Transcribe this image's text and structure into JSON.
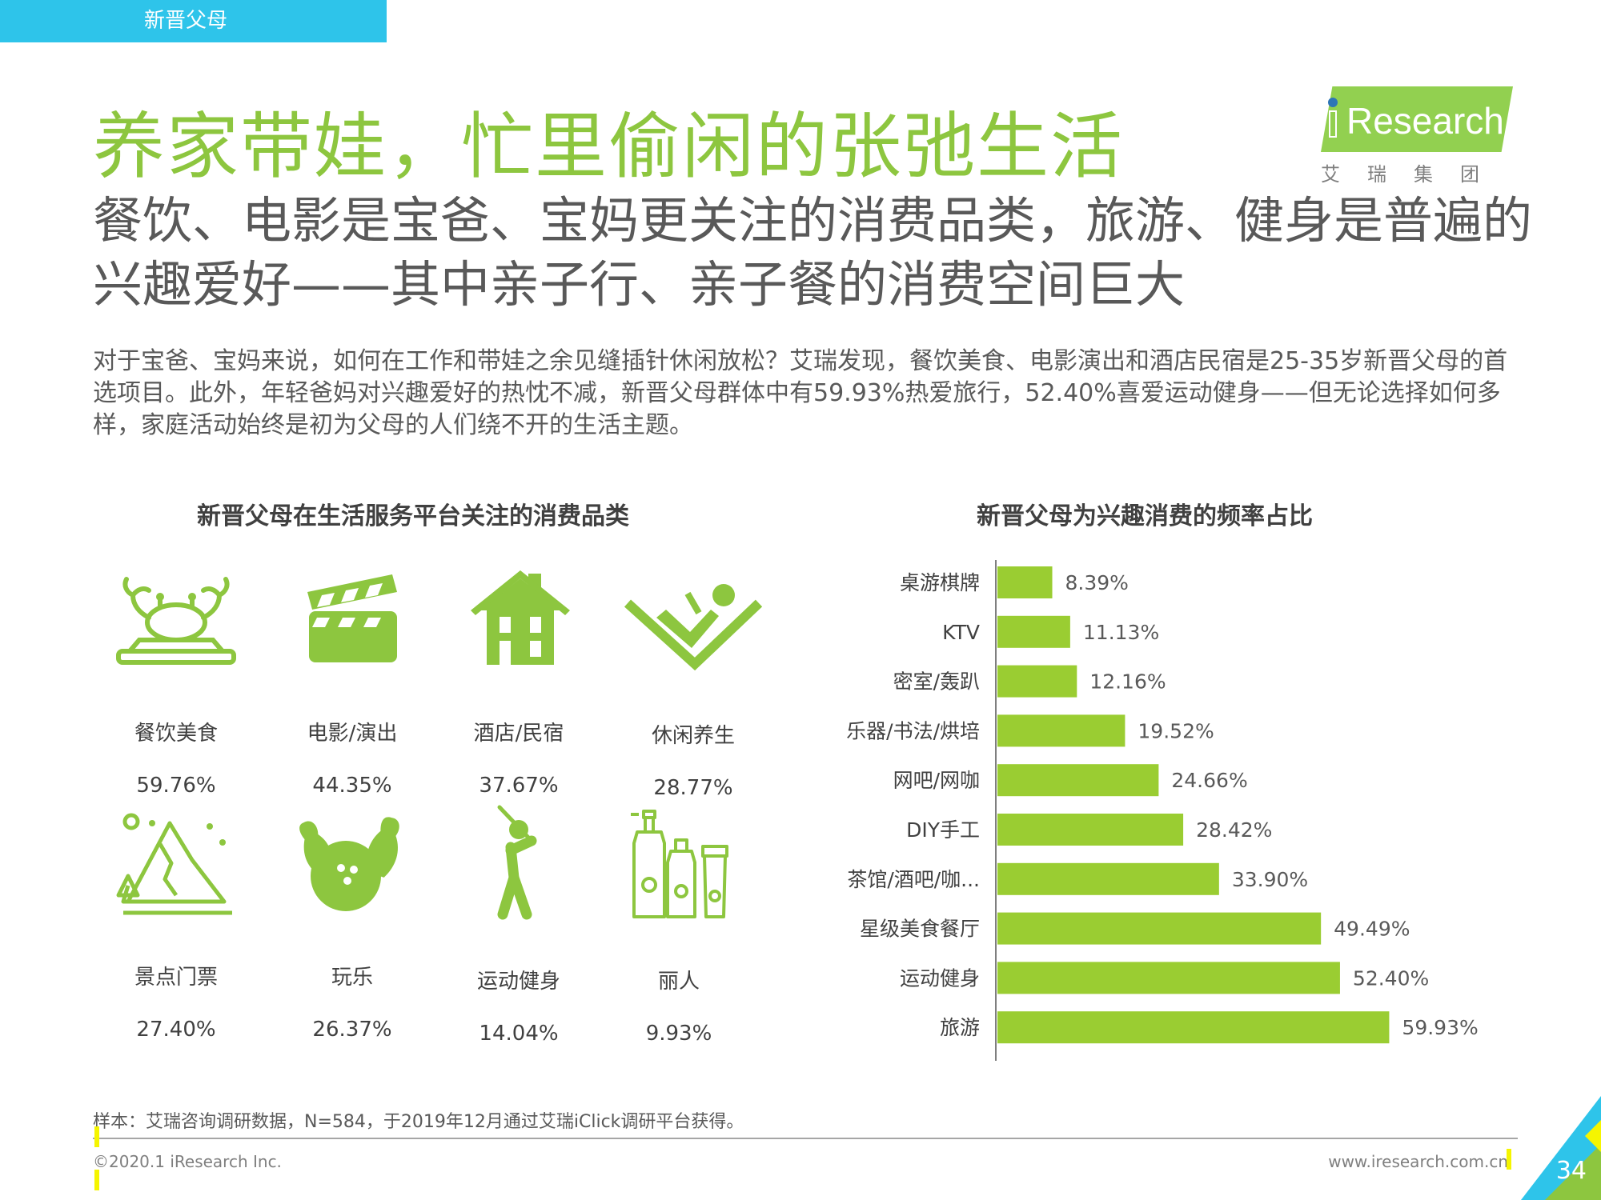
{
  "section_tag": "新晋父母",
  "logo": {
    "brand": "iResearch",
    "brand_rest": "Research",
    "cn": "艾瑞集团"
  },
  "title": "养家带娃，忙里偷闲的张弛生活",
  "subtitle": "餐饮、电影是宝爸、宝妈更关注的消费品类，旅游、健身是普遍的兴趣爱好——其中亲子行、亲子餐的消费空间巨大",
  "body": "对于宝爸、宝妈来说，如何在工作和带娃之余见缝插针休闲放松？艾瑞发现，餐饮美食、电影演出和酒店民宿是25-35岁新晋父母的首选项目。此外，年轻爸妈对兴趣爱好的热忱不减，新晋父母群体中有59.93%热爱旅行，52.40%喜爱运动健身——但无论选择如何多样，家庭活动始终是初为父母的人们绕不开的生活主题。",
  "left_panel": {
    "title": "新晋父母在生活服务平台关注的消费品类",
    "categories": [
      {
        "icon": "food-dish-icon",
        "label": "餐饮美食",
        "value": "59.76%"
      },
      {
        "icon": "clapperboard-icon",
        "label": "电影/演出",
        "value": "44.35%"
      },
      {
        "icon": "house-icon",
        "label": "酒店/民宿",
        "value": "37.67%"
      },
      {
        "icon": "reclining-person-icon",
        "label": "休闲养生",
        "value": "28.77%"
      },
      {
        "icon": "mountain-icon",
        "label": "景点门票",
        "value": "27.40%"
      },
      {
        "icon": "bowling-icon",
        "label": "玩乐",
        "value": "26.37%"
      },
      {
        "icon": "golfer-icon",
        "label": "运动健身",
        "value": "14.04%"
      },
      {
        "icon": "cosmetics-icon",
        "label": "丽人",
        "value": "9.93%"
      }
    ]
  },
  "right_panel": {
    "title": "新晋父母为兴趣消费的频率占比"
  },
  "chart_data": {
    "type": "bar",
    "orientation": "horizontal",
    "title": "新晋父母为兴趣消费的频率占比",
    "categories": [
      "桌游棋牌",
      "KTV",
      "密室/轰趴",
      "乐器/书法/烘培",
      "网吧/网咖",
      "DIY手工",
      "茶馆/酒吧/咖...",
      "星级美食餐厅",
      "运动健身",
      "旅游"
    ],
    "values": [
      8.39,
      11.13,
      12.16,
      19.52,
      24.66,
      28.42,
      33.9,
      49.49,
      52.4,
      59.93
    ],
    "value_labels": [
      "8.39%",
      "11.13%",
      "12.16%",
      "19.52%",
      "24.66%",
      "28.42%",
      "33.90%",
      "49.49%",
      "52.40%",
      "59.93%"
    ],
    "xlim": [
      0,
      60
    ],
    "grid": false,
    "color": "#9acd32"
  },
  "footer": {
    "note": "样本：艾瑞咨询调研数据，N=584，于2019年12月通过艾瑞iClick调研平台获得。",
    "copyright": "©2020.1 iResearch Inc.",
    "website": "www.iresearch.com.cn",
    "page": "34"
  }
}
